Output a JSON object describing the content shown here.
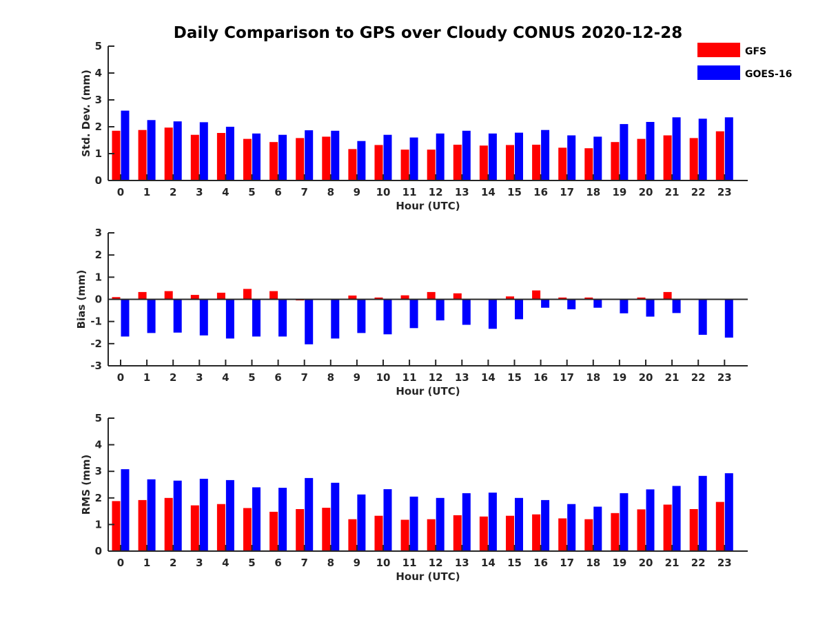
{
  "chart_data": {
    "type": "bar",
    "title": "Daily Comparison to GPS over Cloudy CONUS 2020-12-28",
    "legend": {
      "placement": "top-right",
      "entries": [
        {
          "name": "GFS",
          "color": "#ff0000"
        },
        {
          "name": "GOES-16",
          "color": "#0000ff"
        }
      ]
    },
    "categories": [
      "0",
      "1",
      "2",
      "3",
      "4",
      "5",
      "6",
      "7",
      "8",
      "9",
      "10",
      "11",
      "12",
      "13",
      "14",
      "15",
      "16",
      "17",
      "18",
      "19",
      "20",
      "21",
      "22",
      "23"
    ],
    "panels": [
      {
        "id": "std",
        "xlabel": "Hour (UTC)",
        "ylabel": "Std. Dev. (mm)",
        "ylim": [
          0,
          5
        ],
        "yticks": [
          0,
          1,
          2,
          3,
          4,
          5
        ],
        "grid": false,
        "series": [
          {
            "name": "GFS",
            "values": [
              1.85,
              1.88,
              1.97,
              1.7,
              1.77,
              1.55,
              1.43,
              1.58,
              1.63,
              1.17,
              1.32,
              1.15,
              1.15,
              1.33,
              1.3,
              1.32,
              1.33,
              1.22,
              1.2,
              1.43,
              1.55,
              1.68,
              1.58,
              1.83
            ]
          },
          {
            "name": "GOES-16",
            "values": [
              2.6,
              2.25,
              2.2,
              2.17,
              2.0,
              1.75,
              1.7,
              1.87,
              1.85,
              1.47,
              1.7,
              1.6,
              1.75,
              1.85,
              1.75,
              1.78,
              1.88,
              1.68,
              1.63,
              2.1,
              2.18,
              2.35,
              2.3,
              2.35
            ]
          }
        ]
      },
      {
        "id": "bias",
        "xlabel": "Hour (UTC)",
        "ylabel": "Bias (mm)",
        "ylim": [
          -3,
          3
        ],
        "yticks": [
          -3,
          -2,
          -1,
          0,
          1,
          2,
          3
        ],
        "grid": false,
        "zero_line": true,
        "series": [
          {
            "name": "GFS",
            "values": [
              0.1,
              0.33,
              0.37,
              0.2,
              0.3,
              0.47,
              0.37,
              -0.05,
              0.03,
              0.17,
              0.08,
              0.18,
              0.33,
              0.27,
              0.02,
              0.13,
              0.4,
              0.08,
              0.08,
              0.0,
              0.08,
              0.33,
              0.0,
              0.0
            ]
          },
          {
            "name": "GOES-16",
            "values": [
              -1.68,
              -1.52,
              -1.5,
              -1.63,
              -1.77,
              -1.68,
              -1.68,
              -2.03,
              -1.77,
              -1.52,
              -1.58,
              -1.3,
              -0.95,
              -1.15,
              -1.33,
              -0.9,
              -0.38,
              -0.45,
              -0.38,
              -0.63,
              -0.78,
              -0.62,
              -1.6,
              -1.73
            ]
          }
        ]
      },
      {
        "id": "rms",
        "xlabel": "Hour (UTC)",
        "ylabel": "RMS (mm)",
        "ylim": [
          0,
          5
        ],
        "yticks": [
          0,
          1,
          2,
          3,
          4,
          5
        ],
        "grid": false,
        "series": [
          {
            "name": "GFS",
            "values": [
              1.88,
              1.92,
              2.0,
              1.72,
              1.77,
              1.62,
              1.48,
              1.58,
              1.63,
              1.2,
              1.33,
              1.18,
              1.2,
              1.35,
              1.3,
              1.33,
              1.38,
              1.23,
              1.2,
              1.43,
              1.57,
              1.75,
              1.58,
              1.85
            ]
          },
          {
            "name": "GOES-16",
            "values": [
              3.08,
              2.7,
              2.65,
              2.72,
              2.67,
              2.4,
              2.38,
              2.75,
              2.57,
              2.13,
              2.33,
              2.05,
              2.0,
              2.18,
              2.2,
              2.0,
              1.92,
              1.77,
              1.67,
              2.18,
              2.32,
              2.45,
              2.83,
              2.93
            ]
          }
        ]
      }
    ]
  }
}
